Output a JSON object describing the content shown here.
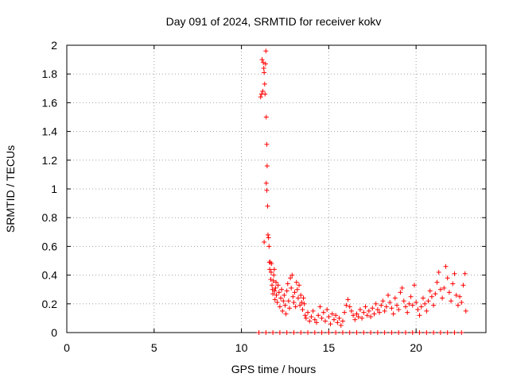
{
  "chart_data": {
    "type": "scatter",
    "title": "Day 091 of 2024, SRMTID for receiver kokv",
    "xlabel": "GPS time / hours",
    "ylabel": "SRMTID / TECUs",
    "xlim": [
      0,
      24
    ],
    "ylim": [
      0,
      2
    ],
    "grid": true,
    "marker": "+",
    "series_color": "#ff0000",
    "xticks": [
      0,
      5,
      10,
      15,
      20
    ],
    "xtick_labels": [
      "0",
      "5",
      "10",
      "15",
      "20"
    ],
    "yticks": [
      0,
      0.2,
      0.4,
      0.6,
      0.8,
      1,
      1.2,
      1.4,
      1.6,
      1.8,
      2
    ],
    "ytick_labels": [
      "0",
      "0.2",
      "0.4",
      "0.6",
      "0.8",
      "1",
      "1.2",
      "1.4",
      "1.6",
      "1.8",
      "2"
    ],
    "series": [
      {
        "name": "SRMTID",
        "points": [
          [
            11.1,
            1.64
          ],
          [
            11.15,
            1.66
          ],
          [
            11.18,
            1.9
          ],
          [
            11.22,
            1.68
          ],
          [
            11.25,
            1.88
          ],
          [
            11.28,
            1.84
          ],
          [
            11.3,
            1.81
          ],
          [
            11.33,
            1.73
          ],
          [
            11.35,
            1.66
          ],
          [
            11.38,
            1.87
          ],
          [
            11.4,
            1.96
          ],
          [
            11.42,
            1.5
          ],
          [
            11.45,
            1.31
          ],
          [
            11.47,
            1.16
          ],
          [
            11.42,
            1.04
          ],
          [
            11.45,
            0.99
          ],
          [
            11.5,
            0.88
          ],
          [
            11.3,
            0.63
          ],
          [
            11.52,
            0.68
          ],
          [
            11.55,
            0.66
          ],
          [
            11.58,
            0.6
          ],
          [
            11.6,
            0.49
          ],
          [
            11.62,
            0.44
          ],
          [
            11.65,
            0.49
          ],
          [
            11.68,
            0.37
          ],
          [
            11.7,
            0.42
          ],
          [
            11.72,
            0.48
          ],
          [
            11.75,
            0.33
          ],
          [
            11.78,
            0.3
          ],
          [
            11.8,
            0.27
          ],
          [
            11.83,
            0.36
          ],
          [
            11.85,
            0.4
          ],
          [
            11.88,
            0.44
          ],
          [
            11.9,
            0.29
          ],
          [
            11.92,
            0.23
          ],
          [
            11.95,
            0.31
          ],
          [
            11.98,
            0.35
          ],
          [
            12.0,
            0.26
          ],
          [
            12.05,
            0.21
          ],
          [
            12.1,
            0.33
          ],
          [
            12.15,
            0.28
          ],
          [
            12.2,
            0.18
          ],
          [
            12.25,
            0.24
          ],
          [
            12.3,
            0.3
          ],
          [
            12.35,
            0.15
          ],
          [
            12.4,
            0.22
          ],
          [
            12.45,
            0.26
          ],
          [
            12.5,
            0.19
          ],
          [
            12.55,
            0.13
          ],
          [
            12.6,
            0.29
          ],
          [
            12.65,
            0.34
          ],
          [
            12.7,
            0.22
          ],
          [
            12.75,
            0.17
          ],
          [
            12.8,
            0.38
          ],
          [
            12.85,
            0.31
          ],
          [
            12.9,
            0.4
          ],
          [
            12.95,
            0.25
          ],
          [
            13.0,
            0.21
          ],
          [
            13.05,
            0.28
          ],
          [
            13.1,
            0.18
          ],
          [
            13.15,
            0.35
          ],
          [
            13.2,
            0.3
          ],
          [
            13.25,
            0.24
          ],
          [
            13.3,
            0.33
          ],
          [
            13.35,
            0.19
          ],
          [
            13.4,
            0.26
          ],
          [
            13.45,
            0.21
          ],
          [
            13.5,
            0.16
          ],
          [
            13.55,
            0.24
          ],
          [
            13.6,
            0.2
          ],
          [
            13.65,
            0.12
          ],
          [
            13.7,
            0.1
          ],
          [
            13.8,
            0.14
          ],
          [
            13.9,
            0.08
          ],
          [
            14.0,
            0.11
          ],
          [
            14.1,
            0.15
          ],
          [
            14.2,
            0.09
          ],
          [
            14.3,
            0.07
          ],
          [
            14.4,
            0.12
          ],
          [
            14.5,
            0.18
          ],
          [
            14.6,
            0.1
          ],
          [
            14.7,
            0.14
          ],
          [
            14.8,
            0.08
          ],
          [
            14.9,
            0.16
          ],
          [
            15.0,
            0.11
          ],
          [
            15.1,
            0.06
          ],
          [
            15.2,
            0.13
          ],
          [
            15.3,
            0.09
          ],
          [
            15.4,
            0.12
          ],
          [
            15.5,
            0.07
          ],
          [
            15.6,
            0.1
          ],
          [
            15.7,
            0.05
          ],
          [
            15.8,
            0.08
          ],
          [
            15.9,
            0.14
          ],
          [
            16.0,
            0.19
          ],
          [
            16.1,
            0.23
          ],
          [
            16.2,
            0.18
          ],
          [
            16.3,
            0.15
          ],
          [
            16.4,
            0.12
          ],
          [
            16.5,
            0.09
          ],
          [
            16.6,
            0.13
          ],
          [
            16.7,
            0.11
          ],
          [
            16.8,
            0.16
          ],
          [
            16.9,
            0.1
          ],
          [
            17.0,
            0.14
          ],
          [
            17.1,
            0.18
          ],
          [
            17.2,
            0.12
          ],
          [
            17.3,
            0.15
          ],
          [
            17.4,
            0.11
          ],
          [
            17.5,
            0.17
          ],
          [
            17.6,
            0.13
          ],
          [
            17.7,
            0.2
          ],
          [
            17.8,
            0.16
          ],
          [
            17.9,
            0.14
          ],
          [
            18.0,
            0.19
          ],
          [
            18.1,
            0.22
          ],
          [
            18.2,
            0.15
          ],
          [
            18.3,
            0.18
          ],
          [
            18.4,
            0.26
          ],
          [
            18.5,
            0.21
          ],
          [
            18.6,
            0.17
          ],
          [
            18.7,
            0.13
          ],
          [
            18.8,
            0.24
          ],
          [
            18.9,
            0.19
          ],
          [
            19.0,
            0.16
          ],
          [
            19.1,
            0.28
          ],
          [
            19.2,
            0.31
          ],
          [
            19.3,
            0.22
          ],
          [
            19.4,
            0.18
          ],
          [
            19.5,
            0.14
          ],
          [
            19.6,
            0.2
          ],
          [
            19.7,
            0.25
          ],
          [
            19.8,
            0.19
          ],
          [
            19.9,
            0.33
          ],
          [
            20.0,
            0.21
          ],
          [
            20.1,
            0.16
          ],
          [
            20.2,
            0.12
          ],
          [
            20.3,
            0.18
          ],
          [
            20.4,
            0.24
          ],
          [
            20.5,
            0.2
          ],
          [
            20.6,
            0.15
          ],
          [
            20.7,
            0.22
          ],
          [
            20.8,
            0.29
          ],
          [
            20.9,
            0.25
          ],
          [
            21.0,
            0.19
          ],
          [
            21.1,
            0.27
          ],
          [
            21.2,
            0.35
          ],
          [
            21.3,
            0.42
          ],
          [
            21.4,
            0.3
          ],
          [
            21.5,
            0.24
          ],
          [
            21.6,
            0.31
          ],
          [
            21.7,
            0.46
          ],
          [
            21.8,
            0.38
          ],
          [
            21.9,
            0.28
          ],
          [
            22.0,
            0.22
          ],
          [
            22.1,
            0.34
          ],
          [
            22.2,
            0.41
          ],
          [
            22.3,
            0.26
          ],
          [
            22.4,
            0.19
          ],
          [
            22.5,
            0.25
          ],
          [
            22.6,
            0.21
          ],
          [
            22.7,
            0.33
          ],
          [
            22.8,
            0.41
          ],
          [
            22.85,
            0.15
          ],
          [
            11.0,
            0.0
          ],
          [
            11.4,
            0.0
          ],
          [
            11.8,
            0.0
          ],
          [
            12.2,
            0.0
          ],
          [
            12.6,
            0.0
          ],
          [
            13.0,
            0.0
          ],
          [
            13.4,
            0.0
          ],
          [
            13.8,
            0.0
          ],
          [
            14.2,
            0.0
          ],
          [
            14.6,
            0.0
          ],
          [
            15.0,
            0.0
          ],
          [
            15.4,
            0.0
          ],
          [
            15.8,
            0.0
          ],
          [
            16.2,
            0.0
          ],
          [
            16.6,
            0.0
          ],
          [
            17.0,
            0.0
          ],
          [
            17.4,
            0.0
          ],
          [
            17.8,
            0.0
          ],
          [
            18.2,
            0.0
          ],
          [
            18.6,
            0.0
          ],
          [
            19.0,
            0.0
          ],
          [
            19.4,
            0.0
          ],
          [
            19.8,
            0.0
          ],
          [
            20.2,
            0.0
          ],
          [
            20.6,
            0.0
          ],
          [
            21.0,
            0.0
          ],
          [
            21.4,
            0.0
          ],
          [
            21.8,
            0.0
          ],
          [
            22.2,
            0.0
          ],
          [
            22.6,
            0.0
          ]
        ]
      }
    ]
  }
}
